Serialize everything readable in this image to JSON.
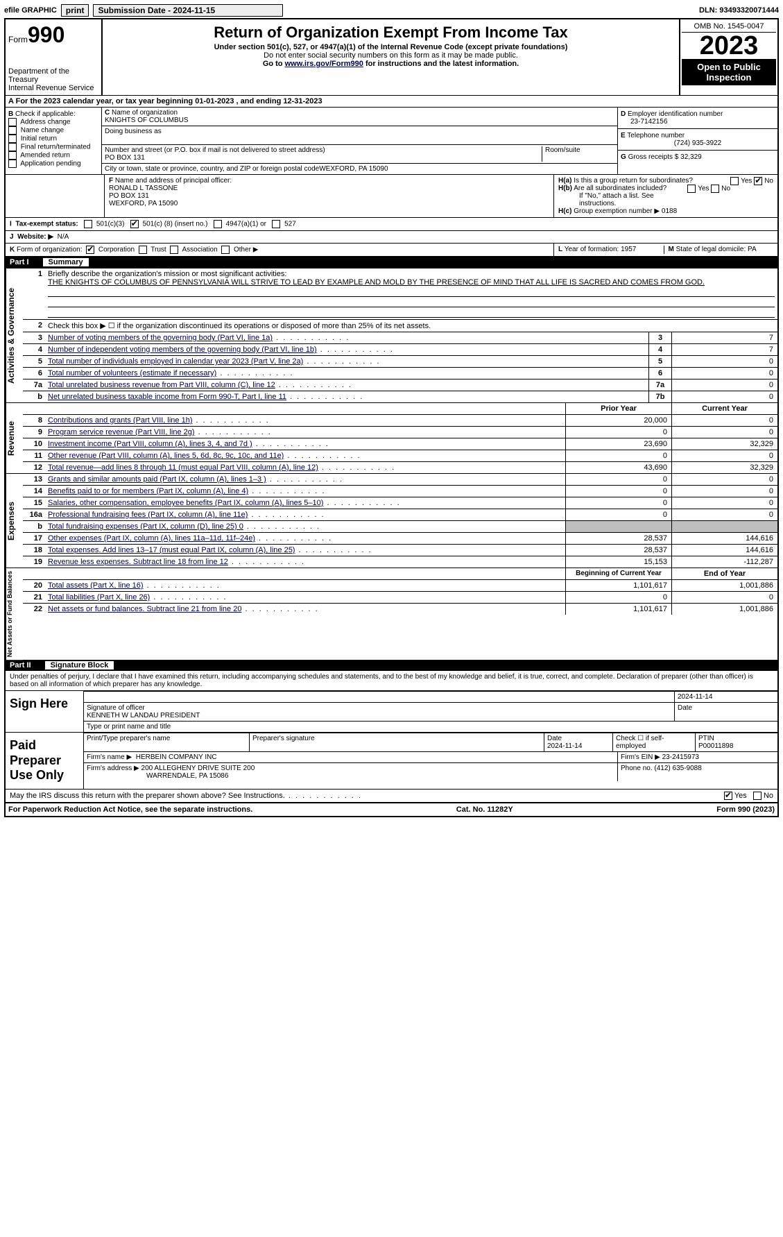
{
  "topbar": {
    "efile": "efile GRAPHIC",
    "print": "print",
    "submission": "Submission Date - 2024-11-15",
    "dln": "DLN: 93493320071444"
  },
  "header": {
    "form_word": "Form",
    "form_no": "990",
    "dept1": "Department of the Treasury",
    "dept2": "Internal Revenue Service",
    "title": "Return of Organization Exempt From Income Tax",
    "sub1": "Under section 501(c), 527, or 4947(a)(1) of the Internal Revenue Code (except private foundations)",
    "sub2": "Do not enter social security numbers on this form as it may be made public.",
    "sub3a": "Go to ",
    "sub3_link": "www.irs.gov/Form990",
    "sub3b": " for instructions and the latest information.",
    "omb": "OMB No. 1545-0047",
    "year": "2023",
    "oti1": "Open to Public",
    "oti2": "Inspection"
  },
  "a_line": "For the 2023 calendar year, or tax year beginning 01-01-2023    , and ending 12-31-2023",
  "b": {
    "label": "Check if applicable:",
    "opts": [
      "Address change",
      "Name change",
      "Initial return",
      "Final return/terminated",
      "Amended return",
      "Application pending"
    ]
  },
  "c": {
    "name_lbl": "Name of organization",
    "name": "KNIGHTS OF COLUMBUS",
    "dba_lbl": "Doing business as",
    "dba": "",
    "addr_lbl": "Number and street (or P.O. box if mail is not delivered to street address)",
    "addr": "PO BOX 131",
    "room_lbl": "Room/suite",
    "city_lbl": "City or town, state or province, country, and ZIP or foreign postal code",
    "city": "WEXFORD, PA  15090"
  },
  "d": {
    "lbl": "Employer identification number",
    "val": "23-7142156"
  },
  "e": {
    "lbl": "Telephone number",
    "val": "(724) 935-3922"
  },
  "g": {
    "lbl": "Gross receipts $",
    "val": "32,329"
  },
  "f": {
    "lbl": "Name and address of principal officer:",
    "l1": "RONALD L TASSONE",
    "l2": "PO BOX 131",
    "l3": "WEXFORD, PA  15090"
  },
  "h": {
    "a": "Is this a group return for subordinates?",
    "b": "Are all subordinates included?",
    "b2": "If \"No,\" attach a list. See instructions.",
    "c_lbl": "Group exemption number ▶",
    "c_val": "0188",
    "yes": "Yes",
    "no": "No"
  },
  "i": {
    "lbl": "Tax-exempt status:",
    "o1": "501(c)(3)",
    "o2_pre": "501(c) (",
    "o2_val": "8",
    "o2_post": ") (insert no.)",
    "o3": "4947(a)(1) or",
    "o4": "527"
  },
  "j": {
    "lbl": "Website: ▶",
    "val": "N/A"
  },
  "k": {
    "lbl": "Form of organization:",
    "o1": "Corporation",
    "o2": "Trust",
    "o3": "Association",
    "o4": "Other ▶"
  },
  "l": {
    "lbl": "Year of formation:",
    "val": "1957"
  },
  "m": {
    "lbl": "State of legal domicile:",
    "val": "PA"
  },
  "part1": {
    "num": "Part I",
    "title": "Summary",
    "l1a": "Briefly describe the organization's mission or most significant activities:",
    "l1b": "THE KNIGHTS OF COLUMBUS OF PENNSYLVANIA WILL STRIVE TO LEAD BY EXAMPLE AND MOLD BY THE PRESENCE OF MIND THAT ALL LIFE IS SACRED AND COMES FROM GOD.",
    "l2": "Check this box ▶ ☐ if the organization discontinued its operations or disposed of more than 25% of its net assets.",
    "lines_simple": [
      {
        "n": "3",
        "d": "Number of voting members of the governing body (Part VI, line 1a)",
        "box": "3",
        "v": "7"
      },
      {
        "n": "4",
        "d": "Number of independent voting members of the governing body (Part VI, line 1b)",
        "box": "4",
        "v": "7"
      },
      {
        "n": "5",
        "d": "Total number of individuals employed in calendar year 2023 (Part V, line 2a)",
        "box": "5",
        "v": "0"
      },
      {
        "n": "6",
        "d": "Total number of volunteers (estimate if necessary)",
        "box": "6",
        "v": "0"
      },
      {
        "n": "7a",
        "d": "Total unrelated business revenue from Part VIII, column (C), line 12",
        "box": "7a",
        "v": "0"
      },
      {
        "n": "b",
        "d": "Net unrelated business taxable income from Form 990-T, Part I, line 11",
        "box": "7b",
        "v": "0"
      }
    ],
    "col_hdr_prior": "Prior Year",
    "col_hdr_curr": "Current Year",
    "revenue": [
      {
        "n": "8",
        "d": "Contributions and grants (Part VIII, line 1h)",
        "p": "20,000",
        "c": "0"
      },
      {
        "n": "9",
        "d": "Program service revenue (Part VIII, line 2g)",
        "p": "0",
        "c": "0"
      },
      {
        "n": "10",
        "d": "Investment income (Part VIII, column (A), lines 3, 4, and 7d )",
        "p": "23,690",
        "c": "32,329"
      },
      {
        "n": "11",
        "d": "Other revenue (Part VIII, column (A), lines 5, 6d, 8c, 9c, 10c, and 11e)",
        "p": "0",
        "c": "0"
      },
      {
        "n": "12",
        "d": "Total revenue—add lines 8 through 11 (must equal Part VIII, column (A), line 12)",
        "p": "43,690",
        "c": "32,329"
      }
    ],
    "expenses": [
      {
        "n": "13",
        "d": "Grants and similar amounts paid (Part IX, column (A), lines 1–3 )",
        "p": "0",
        "c": "0"
      },
      {
        "n": "14",
        "d": "Benefits paid to or for members (Part IX, column (A), line 4)",
        "p": "0",
        "c": "0"
      },
      {
        "n": "15",
        "d": "Salaries, other compensation, employee benefits (Part IX, column (A), lines 5–10)",
        "p": "0",
        "c": "0"
      },
      {
        "n": "16a",
        "d": "Professional fundraising fees (Part IX, column (A), line 11e)",
        "p": "0",
        "c": "0"
      },
      {
        "n": "b",
        "d": "Total fundraising expenses (Part IX, column (D), line 25) 0",
        "p": "__SHADE__",
        "c": "__SHADE__"
      },
      {
        "n": "17",
        "d": "Other expenses (Part IX, column (A), lines 11a–11d, 11f–24e)",
        "p": "28,537",
        "c": "144,616"
      },
      {
        "n": "18",
        "d": "Total expenses. Add lines 13–17 (must equal Part IX, column (A), line 25)",
        "p": "28,537",
        "c": "144,616"
      },
      {
        "n": "19",
        "d": "Revenue less expenses. Subtract line 18 from line 12",
        "p": "15,153",
        "c": "-112,287"
      }
    ],
    "col_hdr_bocy": "Beginning of Current Year",
    "col_hdr_eoy": "End of Year",
    "netassets": [
      {
        "n": "20",
        "d": "Total assets (Part X, line 16)",
        "p": "1,101,617",
        "c": "1,001,886"
      },
      {
        "n": "21",
        "d": "Total liabilities (Part X, line 26)",
        "p": "0",
        "c": "0"
      },
      {
        "n": "22",
        "d": "Net assets or fund balances. Subtract line 21 from line 20",
        "p": "1,101,617",
        "c": "1,001,886"
      }
    ],
    "side_ag": "Activities & Governance",
    "side_rev": "Revenue",
    "side_exp": "Expenses",
    "side_na": "Net Assets or Fund Balances"
  },
  "part2": {
    "num": "Part II",
    "title": "Signature Block",
    "perjury": "Under penalties of perjury, I declare that I have examined this return, including accompanying schedules and statements, and to the best of my knowledge and belief, it is true, correct, and complete. Declaration of preparer (other than officer) is based on all information of which preparer has any knowledge.",
    "sign_here": "Sign Here",
    "sig_off_lbl": "Signature of officer",
    "sig_date": "2024-11-14",
    "date_lbl": "Date",
    "officer_name": "KENNETH W LANDAU  PRESIDENT",
    "type_lbl": "Type or print name and title",
    "paid_prep": "Paid Preparer Use Only",
    "prep_name_lbl": "Print/Type preparer's name",
    "prep_sig_lbl": "Preparer's signature",
    "prep_date_lbl": "Date",
    "prep_date": "2024-11-14",
    "check_self": "Check ☐ if self-employed",
    "ptin_lbl": "PTIN",
    "ptin": "P00011898",
    "firm_name_lbl": "Firm's name ▶",
    "firm_name": "HERBEIN COMPANY INC",
    "firm_ein_lbl": "Firm's EIN ▶",
    "firm_ein": "23-2415973",
    "firm_addr_lbl": "Firm's address ▶",
    "firm_addr1": "200 ALLEGHENY DRIVE SUITE 200",
    "firm_addr2": "WARRENDALE, PA  15086",
    "phone_lbl": "Phone no.",
    "phone": "(412) 635-9088",
    "discuss": "May the IRS discuss this return with the preparer shown above? See Instructions.",
    "yes": "Yes",
    "no": "No"
  },
  "footer": {
    "left": "For Paperwork Reduction Act Notice, see the separate instructions.",
    "mid": "Cat. No. 11282Y",
    "right": "Form 990 (2023)"
  }
}
